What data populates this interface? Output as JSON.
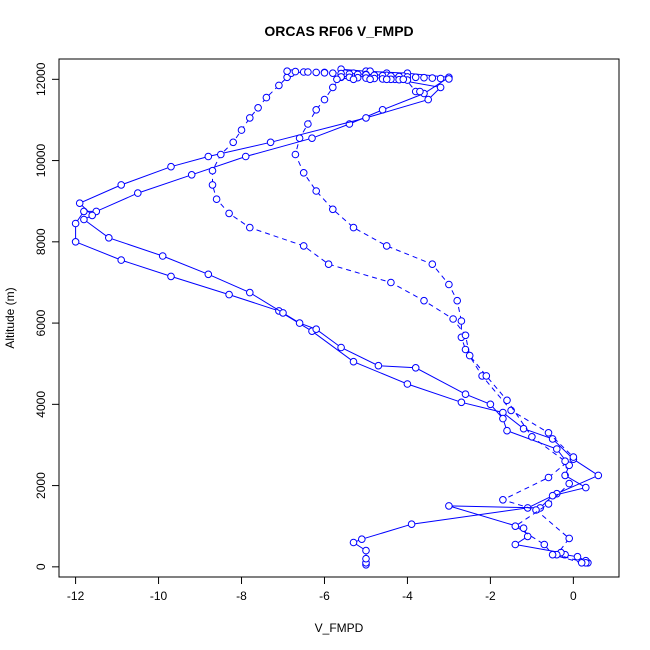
{
  "chart_data": {
    "type": "scatter",
    "title": "ORCAS RF06 V_FMPD",
    "xlabel": "V_FMPD",
    "ylabel": "Altitude (m)",
    "xlim": [
      -12.4,
      1.1
    ],
    "ylim": [
      -250,
      12500
    ],
    "x_ticks": [
      -12,
      -10,
      -8,
      -6,
      -4,
      -2,
      0
    ],
    "y_ticks": [
      0,
      2000,
      4000,
      6000,
      8000,
      10000,
      12000
    ],
    "grid": false,
    "legend": "none",
    "point_color": "#0000ff",
    "series": [
      {
        "line_style": "solid",
        "points": [
          [
            -5.0,
            50
          ],
          [
            -5.0,
            100
          ],
          [
            -5.0,
            200
          ],
          [
            -5.0,
            400
          ],
          [
            -5.3,
            600
          ],
          [
            -5.1,
            680
          ],
          [
            -3.9,
            1050
          ],
          [
            -1.1,
            1450
          ],
          [
            -0.4,
            1800
          ],
          [
            0.6,
            2250
          ],
          [
            0.0,
            2650
          ],
          [
            -0.5,
            3150
          ],
          [
            -1.2,
            3400
          ],
          [
            -1.7,
            3800
          ],
          [
            -2.7,
            4050
          ],
          [
            -4.0,
            4500
          ],
          [
            -5.3,
            5050
          ],
          [
            -6.3,
            5800
          ],
          [
            -7.1,
            6300
          ],
          [
            -8.3,
            6700
          ],
          [
            -9.7,
            7150
          ],
          [
            -10.9,
            7550
          ],
          [
            -12.0,
            8000
          ],
          [
            -12.0,
            8450
          ],
          [
            -11.8,
            8750
          ],
          [
            -11.5,
            8750
          ],
          [
            -10.5,
            9200
          ],
          [
            -9.2,
            9650
          ],
          [
            -7.9,
            10100
          ],
          [
            -6.3,
            10550
          ],
          [
            -5.4,
            10900
          ],
          [
            -4.6,
            11250
          ],
          [
            -3.6,
            11650
          ],
          [
            -3.0,
            12050
          ],
          [
            -4.0,
            12150
          ],
          [
            -5.0,
            12200
          ],
          [
            -5.6,
            12250
          ]
        ]
      },
      {
        "line_style": "solid",
        "points": [
          [
            0.35,
            100
          ],
          [
            0.3,
            150
          ],
          [
            0.1,
            250
          ],
          [
            -0.2,
            300
          ],
          [
            -0.3,
            350
          ],
          [
            -1.4,
            550
          ],
          [
            -1.1,
            750
          ],
          [
            -1.2,
            950
          ],
          [
            -3.0,
            1500
          ],
          [
            -0.8,
            1450
          ],
          [
            -0.5,
            1750
          ],
          [
            0.3,
            1950
          ],
          [
            -0.2,
            2250
          ],
          [
            -0.1,
            2500
          ],
          [
            -0.4,
            2900
          ],
          [
            -1.6,
            3350
          ],
          [
            -1.7,
            3650
          ],
          [
            -2.0,
            4000
          ],
          [
            -2.6,
            4250
          ],
          [
            -3.8,
            4900
          ],
          [
            -4.7,
            4950
          ],
          [
            -5.6,
            5400
          ],
          [
            -6.2,
            5850
          ],
          [
            -6.6,
            6000
          ],
          [
            -7.0,
            6250
          ],
          [
            -7.8,
            6750
          ],
          [
            -8.8,
            7200
          ],
          [
            -9.9,
            7650
          ],
          [
            -11.2,
            8100
          ],
          [
            -11.8,
            8550
          ],
          [
            -11.6,
            8650
          ],
          [
            -11.9,
            8950
          ],
          [
            -10.9,
            9400
          ],
          [
            -9.7,
            9850
          ],
          [
            -8.8,
            10100
          ],
          [
            -7.3,
            10450
          ],
          [
            -5.0,
            11050
          ],
          [
            -3.5,
            11500
          ],
          [
            -3.2,
            11800
          ],
          [
            -4.3,
            12000
          ],
          [
            -5.5,
            12100
          ]
        ]
      },
      {
        "line_style": "dashed",
        "points": [
          [
            0.3,
            100
          ],
          [
            -0.4,
            300
          ],
          [
            -0.1,
            700
          ],
          [
            -0.9,
            1400
          ],
          [
            -1.7,
            1650
          ],
          [
            -0.6,
            2200
          ],
          [
            0.0,
            2700
          ],
          [
            -0.6,
            3300
          ],
          [
            -1.5,
            3850
          ],
          [
            -2.2,
            4700
          ],
          [
            -2.6,
            5350
          ],
          [
            -2.7,
            5650
          ],
          [
            -2.7,
            6050
          ],
          [
            -2.8,
            6550
          ],
          [
            -3.0,
            6950
          ],
          [
            -3.4,
            7450
          ],
          [
            -4.5,
            7900
          ],
          [
            -5.3,
            8350
          ],
          [
            -5.8,
            8800
          ],
          [
            -6.2,
            9250
          ],
          [
            -6.5,
            9700
          ],
          [
            -6.7,
            10150
          ],
          [
            -6.6,
            10550
          ],
          [
            -6.4,
            10900
          ],
          [
            -6.2,
            11250
          ],
          [
            -6.0,
            11500
          ],
          [
            -5.8,
            11800
          ],
          [
            -5.6,
            12050
          ],
          [
            -5.3,
            12150
          ],
          [
            -4.9,
            12200
          ],
          [
            -4.5,
            12150
          ]
        ]
      },
      {
        "line_style": "dashed",
        "points": [
          [
            0.2,
            100
          ],
          [
            -0.5,
            300
          ],
          [
            -0.7,
            550
          ],
          [
            -1.4,
            1000
          ],
          [
            -0.6,
            1550
          ],
          [
            -0.1,
            2050
          ],
          [
            -0.2,
            2600
          ],
          [
            -1.0,
            3200
          ],
          [
            -1.6,
            4100
          ],
          [
            -2.1,
            4700
          ],
          [
            -2.5,
            5200
          ],
          [
            -2.6,
            5700
          ],
          [
            -2.9,
            6100
          ],
          [
            -3.6,
            6550
          ],
          [
            -4.4,
            7000
          ],
          [
            -5.9,
            7450
          ],
          [
            -6.5,
            7900
          ],
          [
            -7.8,
            8350
          ],
          [
            -8.3,
            8700
          ],
          [
            -8.6,
            9050
          ],
          [
            -8.7,
            9400
          ],
          [
            -8.7,
            9750
          ],
          [
            -8.5,
            10150
          ],
          [
            -8.2,
            10450
          ],
          [
            -8.0,
            10750
          ],
          [
            -7.8,
            11050
          ],
          [
            -7.6,
            11300
          ],
          [
            -7.4,
            11550
          ],
          [
            -7.1,
            11850
          ],
          [
            -6.9,
            12050
          ],
          [
            -6.8,
            12150
          ],
          [
            -6.5,
            12180
          ],
          [
            -6.0,
            12170
          ],
          [
            -5.5,
            12150
          ],
          [
            -5.0,
            12120
          ],
          [
            -4.5,
            12100
          ],
          [
            -4.1,
            12080
          ],
          [
            -3.8,
            11700
          ],
          [
            -3.7,
            11700
          ]
        ]
      },
      {
        "line_style": "none",
        "points": [
          [
            -6.9,
            12200
          ],
          [
            -6.7,
            12190
          ],
          [
            -6.4,
            12180
          ],
          [
            -6.2,
            12170
          ],
          [
            -6.0,
            12160
          ],
          [
            -5.8,
            12150
          ],
          [
            -5.6,
            12140
          ],
          [
            -5.4,
            12130
          ],
          [
            -5.2,
            12120
          ],
          [
            -5.0,
            12110
          ],
          [
            -4.8,
            12100
          ],
          [
            -4.6,
            12090
          ],
          [
            -4.4,
            12080
          ],
          [
            -4.2,
            12070
          ],
          [
            -4.0,
            12060
          ],
          [
            -3.8,
            12050
          ],
          [
            -3.6,
            12040
          ],
          [
            -3.4,
            12030
          ],
          [
            -3.2,
            12020
          ],
          [
            -3.0,
            12010
          ],
          [
            -5.6,
            12060
          ],
          [
            -5.4,
            12050
          ],
          [
            -5.2,
            12040
          ],
          [
            -5.0,
            12030
          ],
          [
            -4.8,
            12020
          ],
          [
            -4.6,
            12010
          ],
          [
            -4.4,
            12000
          ],
          [
            -4.2,
            11990
          ],
          [
            -4.0,
            11980
          ],
          [
            -5.7,
            12000
          ],
          [
            -5.3,
            12000
          ],
          [
            -4.9,
            12000
          ],
          [
            -4.5,
            12000
          ],
          [
            -4.1,
            12000
          ]
        ]
      }
    ]
  }
}
